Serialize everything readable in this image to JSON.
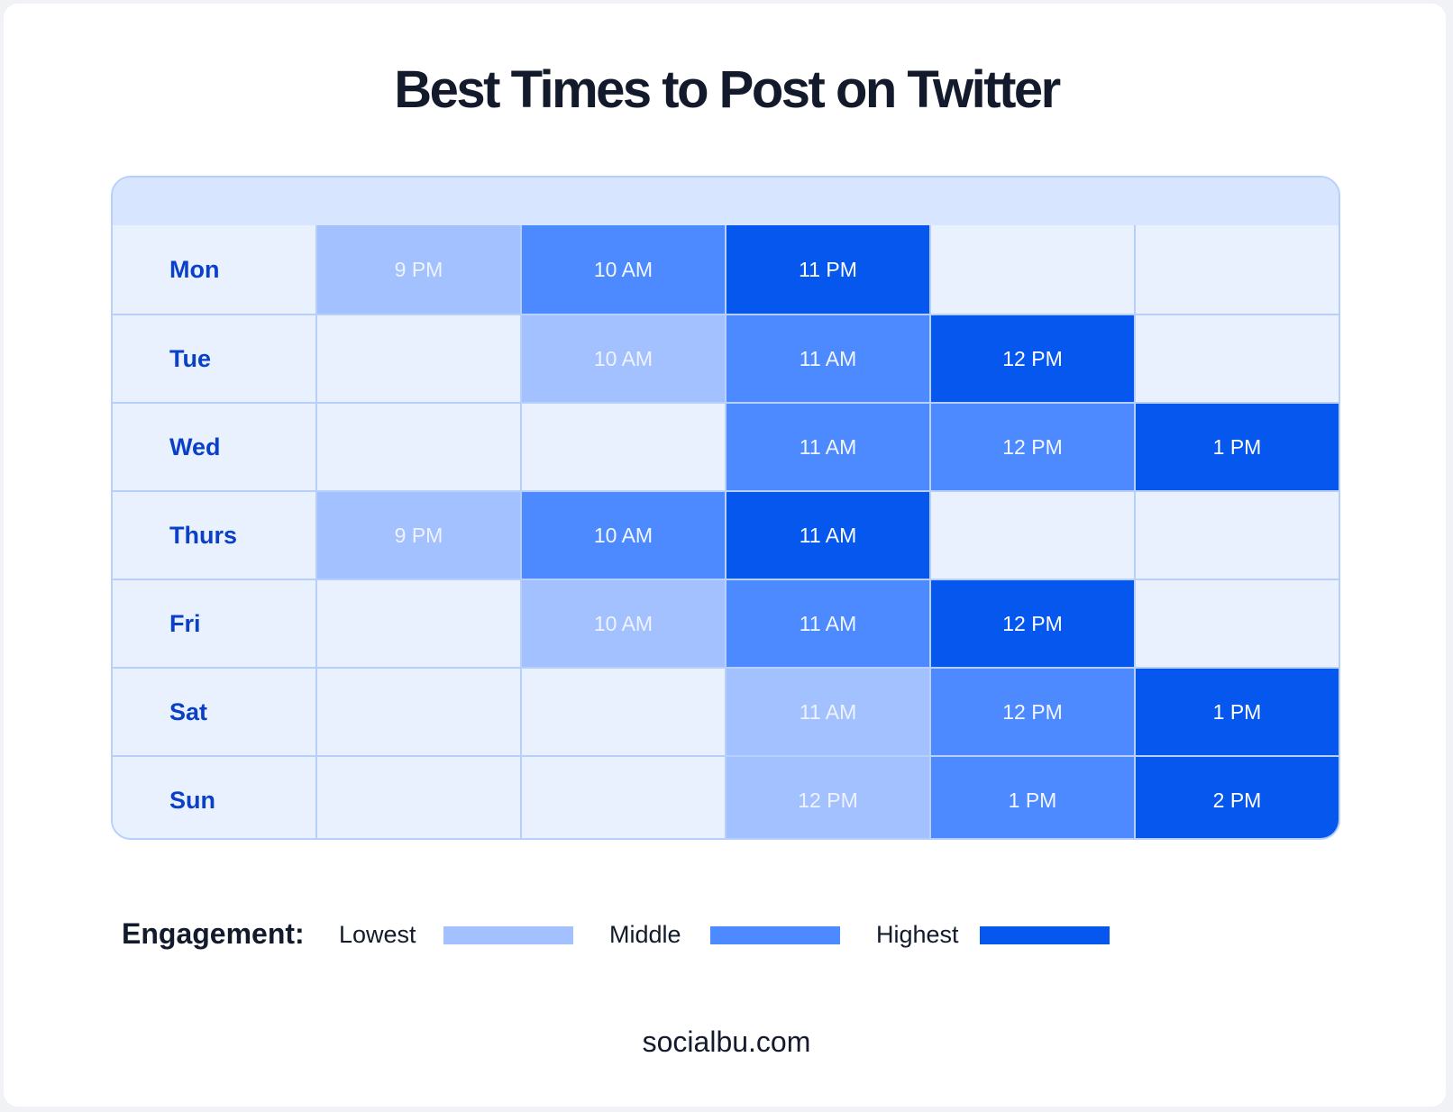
{
  "title": "Best Times to Post on Twitter",
  "colors": {
    "lowest": "#A3C1FF",
    "middle": "#4D8AFF",
    "highest": "#0657EE",
    "empty": "#EAF1FE",
    "header": "#D7E5FE",
    "day_label": "#0A40C8"
  },
  "rows": [
    {
      "day": "Mon",
      "cells": [
        {
          "t": "9 PM",
          "l": 1
        },
        {
          "t": "10 AM",
          "l": 2
        },
        {
          "t": "11 PM",
          "l": 3
        },
        {
          "t": "",
          "l": 0
        },
        {
          "t": "",
          "l": 0
        }
      ]
    },
    {
      "day": "Tue",
      "cells": [
        {
          "t": "",
          "l": 0
        },
        {
          "t": "10 AM",
          "l": 1
        },
        {
          "t": "11 AM",
          "l": 2
        },
        {
          "t": "12 PM",
          "l": 3
        },
        {
          "t": "",
          "l": 0
        }
      ]
    },
    {
      "day": "Wed",
      "cells": [
        {
          "t": "",
          "l": 0
        },
        {
          "t": "",
          "l": 0
        },
        {
          "t": "11 AM",
          "l": 2
        },
        {
          "t": "12 PM",
          "l": 2
        },
        {
          "t": "1 PM",
          "l": 3
        }
      ]
    },
    {
      "day": "Thurs",
      "cells": [
        {
          "t": "9 PM",
          "l": 1
        },
        {
          "t": "10 AM",
          "l": 2
        },
        {
          "t": "11 AM",
          "l": 3
        },
        {
          "t": "",
          "l": 0
        },
        {
          "t": "",
          "l": 0
        }
      ]
    },
    {
      "day": "Fri",
      "cells": [
        {
          "t": "",
          "l": 0
        },
        {
          "t": "10 AM",
          "l": 1
        },
        {
          "t": "11 AM",
          "l": 2
        },
        {
          "t": "12 PM",
          "l": 3
        },
        {
          "t": "",
          "l": 0
        }
      ]
    },
    {
      "day": "Sat",
      "cells": [
        {
          "t": "",
          "l": 0
        },
        {
          "t": "",
          "l": 0
        },
        {
          "t": "11 AM",
          "l": 1
        },
        {
          "t": "12 PM",
          "l": 2
        },
        {
          "t": "1 PM",
          "l": 3
        }
      ]
    },
    {
      "day": "Sun",
      "cells": [
        {
          "t": "",
          "l": 0
        },
        {
          "t": "",
          "l": 0
        },
        {
          "t": "12 PM",
          "l": 1
        },
        {
          "t": "1 PM",
          "l": 2
        },
        {
          "t": "2 PM",
          "l": 3
        }
      ]
    }
  ],
  "legend": {
    "label": "Engagement:",
    "items": [
      {
        "label": "Lowest",
        "color": "#A3C1FF"
      },
      {
        "label": "Middle",
        "color": "#4D8AFF"
      },
      {
        "label": "Highest",
        "color": "#0657EE"
      }
    ]
  },
  "footer": "socialbu.com",
  "chart_data": {
    "type": "heatmap",
    "title": "Best Times to Post on Twitter",
    "rows": [
      "Mon",
      "Tue",
      "Wed",
      "Thurs",
      "Fri",
      "Sat",
      "Sun"
    ],
    "columns": 5,
    "levels": [
      "Lowest",
      "Middle",
      "Highest"
    ],
    "values": {
      "Mon": [
        {
          "time": "9 PM",
          "level": "Lowest"
        },
        {
          "time": "10 AM",
          "level": "Middle"
        },
        {
          "time": "11 PM",
          "level": "Highest"
        }
      ],
      "Tue": [
        {
          "time": "10 AM",
          "level": "Lowest"
        },
        {
          "time": "11 AM",
          "level": "Middle"
        },
        {
          "time": "12 PM",
          "level": "Highest"
        }
      ],
      "Wed": [
        {
          "time": "11 AM",
          "level": "Middle"
        },
        {
          "time": "12 PM",
          "level": "Middle"
        },
        {
          "time": "1 PM",
          "level": "Highest"
        }
      ],
      "Thurs": [
        {
          "time": "9 PM",
          "level": "Lowest"
        },
        {
          "time": "10 AM",
          "level": "Middle"
        },
        {
          "time": "11 AM",
          "level": "Highest"
        }
      ],
      "Fri": [
        {
          "time": "10 AM",
          "level": "Lowest"
        },
        {
          "time": "11 AM",
          "level": "Middle"
        },
        {
          "time": "12 PM",
          "level": "Highest"
        }
      ],
      "Sat": [
        {
          "time": "11 AM",
          "level": "Lowest"
        },
        {
          "time": "12 PM",
          "level": "Middle"
        },
        {
          "time": "1 PM",
          "level": "Highest"
        }
      ],
      "Sun": [
        {
          "time": "12 PM",
          "level": "Lowest"
        },
        {
          "time": "1 PM",
          "level": "Middle"
        },
        {
          "time": "2 PM",
          "level": "Highest"
        }
      ]
    },
    "legend": {
      "title": "Engagement:",
      "entries": [
        "Lowest",
        "Middle",
        "Highest"
      ],
      "position": "bottom"
    },
    "source": "socialbu.com"
  }
}
